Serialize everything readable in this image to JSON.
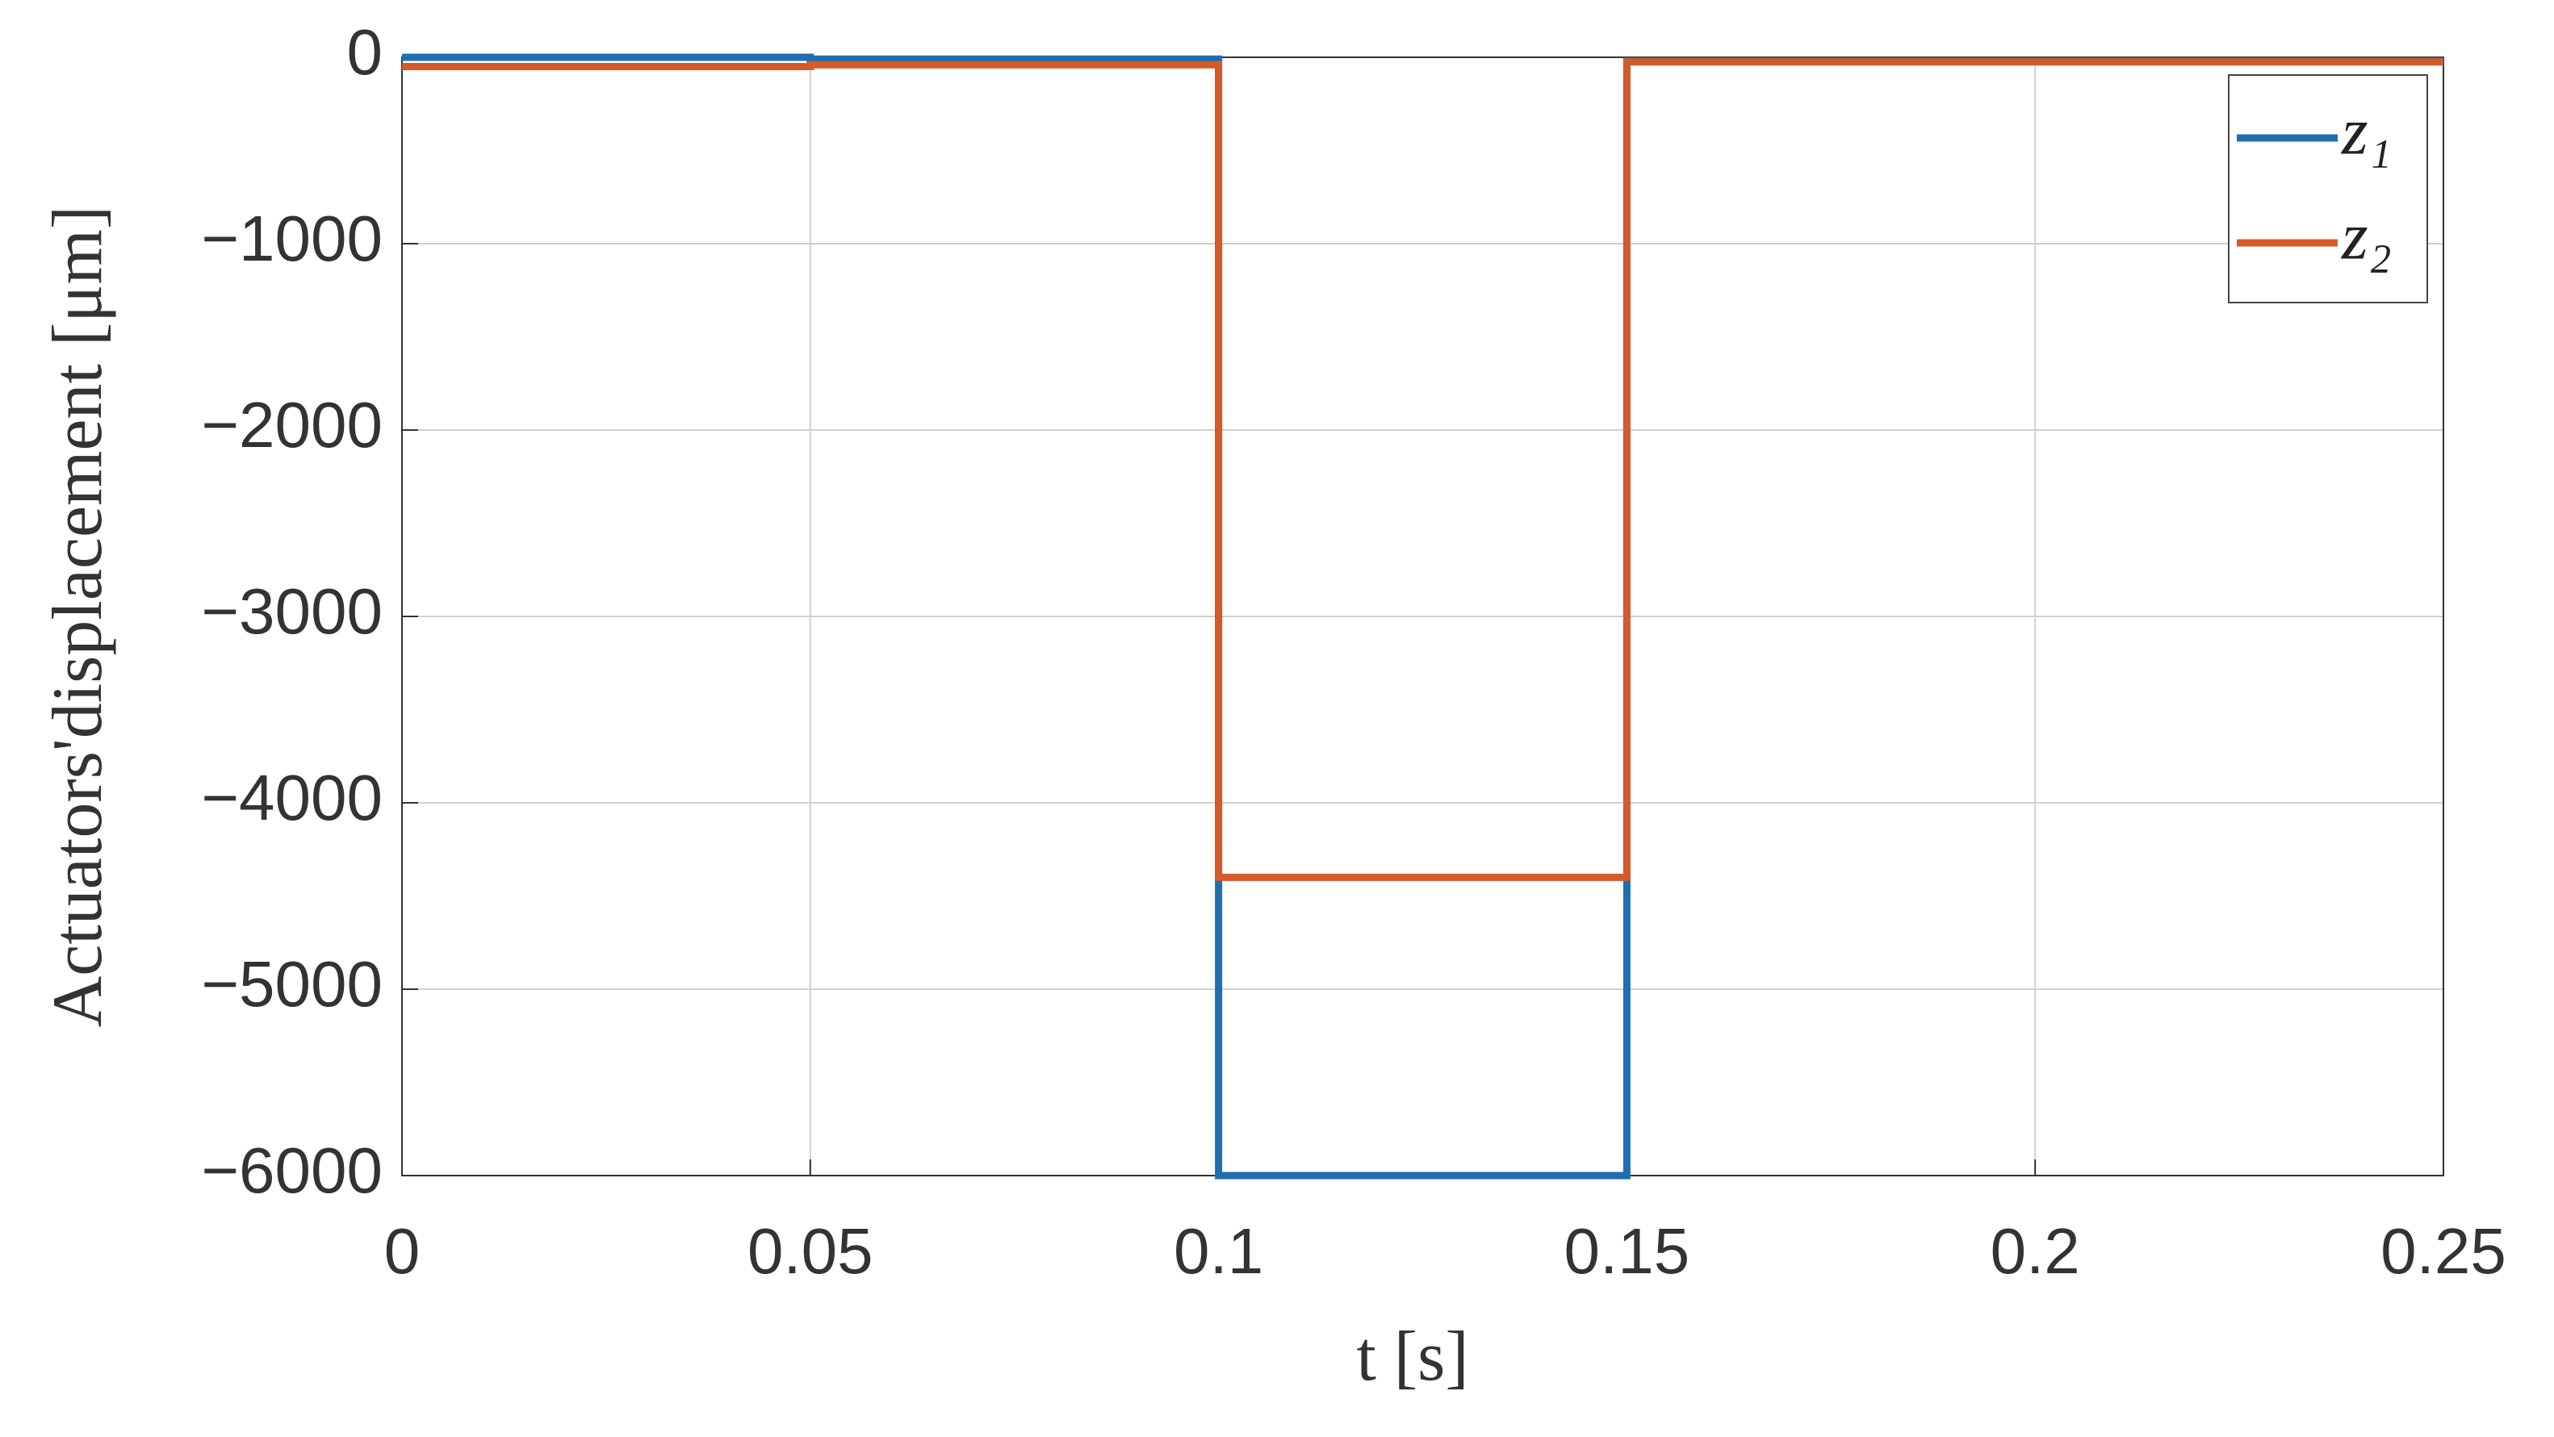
{
  "chart_data": {
    "type": "line",
    "xlabel": "t [s]",
    "ylabel": "Actuators'displacement [μm]",
    "x": [
      0,
      0.05,
      0.05,
      0.1,
      0.1,
      0.15,
      0.15,
      0.25
    ],
    "series": [
      {
        "name": "z₁",
        "color": "#1f6fb0",
        "values": [
          0,
          0,
          -10,
          -10,
          -6000,
          -6000,
          -20,
          -20
        ]
      },
      {
        "name": "z₂",
        "color": "#d45a2a",
        "values": [
          -50,
          -50,
          -40,
          -40,
          -4400,
          -4400,
          -25,
          -25
        ]
      }
    ],
    "xlim": [
      0,
      0.25
    ],
    "ylim": [
      -6000,
      0
    ],
    "xticks": [
      0,
      0.05,
      0.1,
      0.15,
      0.2,
      0.25
    ],
    "yticks": [
      {
        "value": -6000,
        "label": "−6000"
      },
      {
        "value": -5000,
        "label": "−5000"
      },
      {
        "value": -4000,
        "label": "−4000"
      },
      {
        "value": -3000,
        "label": "−3000"
      },
      {
        "value": -2000,
        "label": "−2000"
      },
      {
        "value": -1000,
        "label": "−1000"
      },
      0
    ],
    "grid": true,
    "legend": "upper right"
  }
}
